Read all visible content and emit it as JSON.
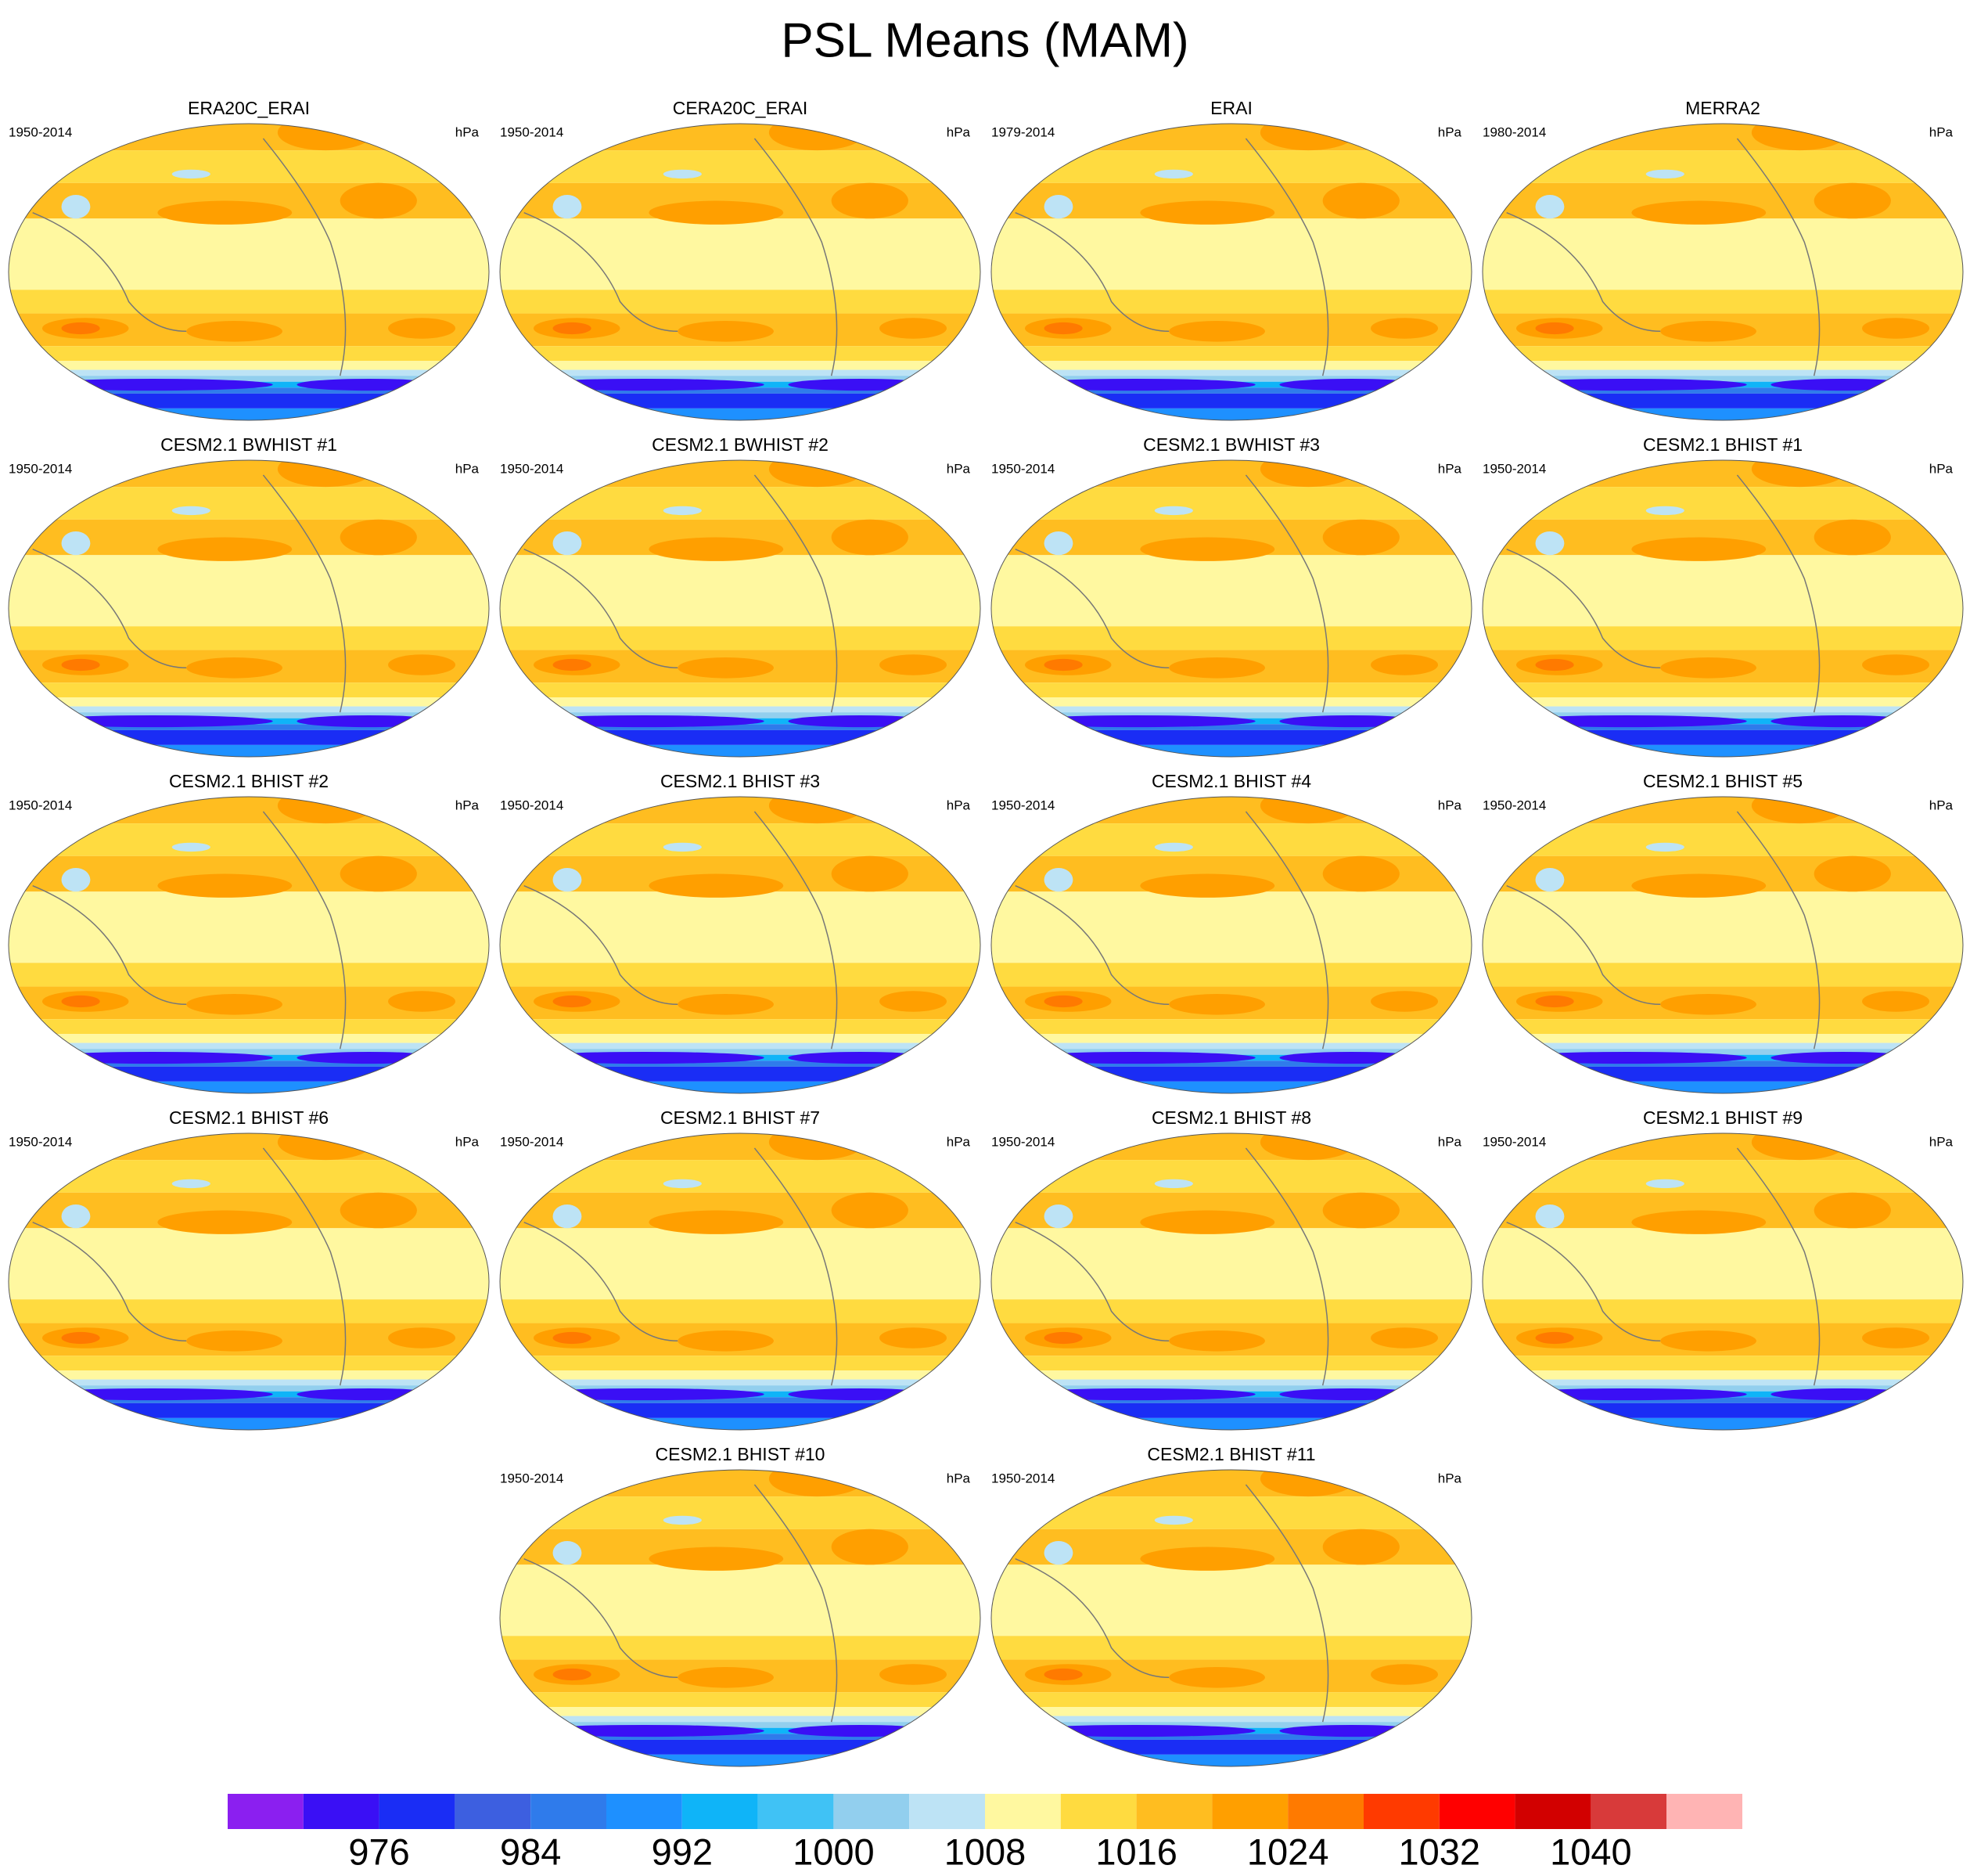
{
  "title": "PSL Means (MAM)",
  "panels": [
    {
      "title": "ERA20C_ERAI",
      "period": "1950-2014",
      "units": "hPa"
    },
    {
      "title": "CERA20C_ERAI",
      "period": "1950-2014",
      "units": "hPa"
    },
    {
      "title": "ERAI",
      "period": "1979-2014",
      "units": "hPa"
    },
    {
      "title": "MERRA2",
      "period": "1980-2014",
      "units": "hPa"
    },
    {
      "title": "CESM2.1 BWHIST #1",
      "period": "1950-2014",
      "units": "hPa"
    },
    {
      "title": "CESM2.1 BWHIST #2",
      "period": "1950-2014",
      "units": "hPa"
    },
    {
      "title": "CESM2.1 BWHIST #3",
      "period": "1950-2014",
      "units": "hPa"
    },
    {
      "title": "CESM2.1 BHIST #1",
      "period": "1950-2014",
      "units": "hPa"
    },
    {
      "title": "CESM2.1 BHIST #2",
      "period": "1950-2014",
      "units": "hPa"
    },
    {
      "title": "CESM2.1 BHIST #3",
      "period": "1950-2014",
      "units": "hPa"
    },
    {
      "title": "CESM2.1 BHIST #4",
      "period": "1950-2014",
      "units": "hPa"
    },
    {
      "title": "CESM2.1 BHIST #5",
      "period": "1950-2014",
      "units": "hPa"
    },
    {
      "title": "CESM2.1 BHIST #6",
      "period": "1950-2014",
      "units": "hPa"
    },
    {
      "title": "CESM2.1 BHIST #7",
      "period": "1950-2014",
      "units": "hPa"
    },
    {
      "title": "CESM2.1 BHIST #8",
      "period": "1950-2014",
      "units": "hPa"
    },
    {
      "title": "CESM2.1 BHIST #9",
      "period": "1950-2014",
      "units": "hPa"
    },
    {
      "title": "CESM2.1 BHIST #10",
      "period": "1950-2014",
      "units": "hPa"
    },
    {
      "title": "CESM2.1 BHIST #11",
      "period": "1950-2014",
      "units": "hPa"
    }
  ],
  "colorbar": {
    "levels": [
      972,
      976,
      980,
      984,
      988,
      992,
      996,
      1000,
      1004,
      1008,
      1012,
      1016,
      1020,
      1024,
      1028,
      1032,
      1036,
      1040,
      1044
    ],
    "ticks": [
      976,
      984,
      992,
      1000,
      1008,
      1016,
      1024,
      1032,
      1040
    ],
    "colors": [
      "#8b1ff0",
      "#3a0ff5",
      "#1a2df5",
      "#3d5fe0",
      "#2f7beb",
      "#1e90ff",
      "#0fb4f8",
      "#40c2f5",
      "#92cfee",
      "#bde3f5",
      "#fff8a0",
      "#ffdb40",
      "#ffbd20",
      "#ff9f00",
      "#ff7a00",
      "#ff3a00",
      "#ff0000",
      "#d20000",
      "#d83a3a",
      "#ffb4b4"
    ]
  }
}
